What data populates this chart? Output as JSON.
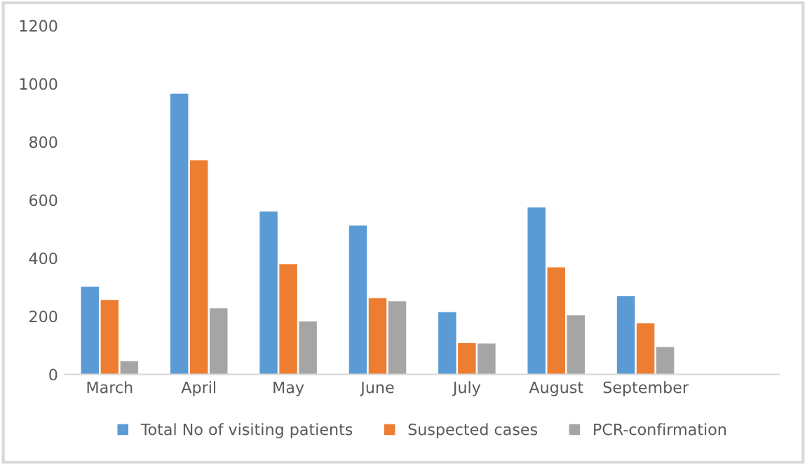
{
  "chart_data": {
    "type": "bar",
    "categories": [
      "March",
      "April",
      "May",
      "June",
      "July",
      "August",
      "September",
      null
    ],
    "series": [
      {
        "name": "Total No of visiting patients",
        "color": "#5b9bd5",
        "values": [
          301,
          966,
          560,
          512,
          214,
          574,
          269,
          null
        ]
      },
      {
        "name": "Suspected cases",
        "color": "#ed7d31",
        "values": [
          256,
          736,
          379,
          262,
          107,
          368,
          176,
          null
        ]
      },
      {
        "name": "PCR-confirmation",
        "color": "#a5a5a5",
        "values": [
          45,
          227,
          182,
          251,
          106,
          203,
          94,
          null
        ]
      }
    ],
    "ylim": [
      0,
      1200
    ],
    "yticks": [
      0,
      200,
      400,
      600,
      800,
      1000,
      1200
    ],
    "grid": false,
    "legend": "bottom"
  }
}
